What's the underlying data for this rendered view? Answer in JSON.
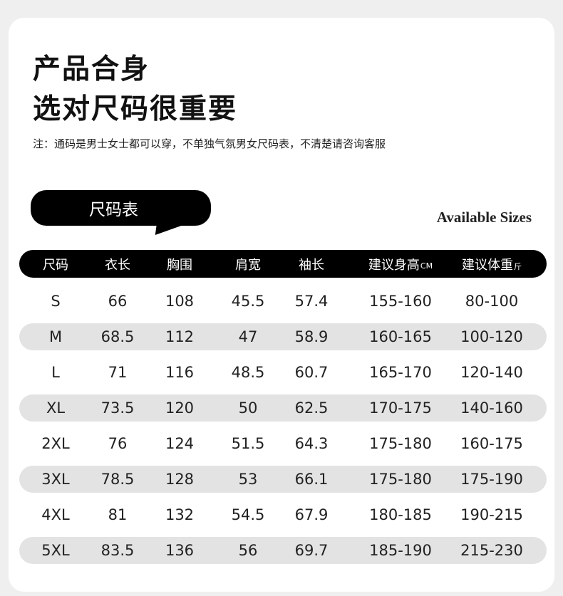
{
  "heading": {
    "line1": "产品合身",
    "line2": "选对尺码很重要"
  },
  "note": "注：通码是男士女士都可以穿，不单独气氛男女尺码表，不清楚请咨询客服",
  "bubble_label": "尺码表",
  "available_sizes": "Available Sizes",
  "table": {
    "headers": [
      {
        "label": "尺码"
      },
      {
        "label": "衣长"
      },
      {
        "label": "胸围"
      },
      {
        "label": "肩宽"
      },
      {
        "label": "袖长"
      },
      {
        "label": "建议身高",
        "unit": "CM"
      },
      {
        "label": "建议体重",
        "unit": "斤"
      }
    ],
    "rows": [
      [
        "S",
        "66",
        "108",
        "45.5",
        "57.4",
        "155-160",
        "80-100"
      ],
      [
        "M",
        "68.5",
        "112",
        "47",
        "58.9",
        "160-165",
        "100-120"
      ],
      [
        "L",
        "71",
        "116",
        "48.5",
        "60.7",
        "165-170",
        "120-140"
      ],
      [
        "XL",
        "73.5",
        "120",
        "50",
        "62.5",
        "170-175",
        "140-160"
      ],
      [
        "2XL",
        "76",
        "124",
        "51.5",
        "64.3",
        "175-180",
        "160-175"
      ],
      [
        "3XL",
        "78.5",
        "128",
        "53",
        "66.1",
        "175-180",
        "175-190"
      ],
      [
        "4XL",
        "81",
        "132",
        "54.5",
        "67.9",
        "180-185",
        "190-215"
      ],
      [
        "5XL",
        "83.5",
        "136",
        "56",
        "69.7",
        "185-190",
        "215-230"
      ]
    ]
  }
}
